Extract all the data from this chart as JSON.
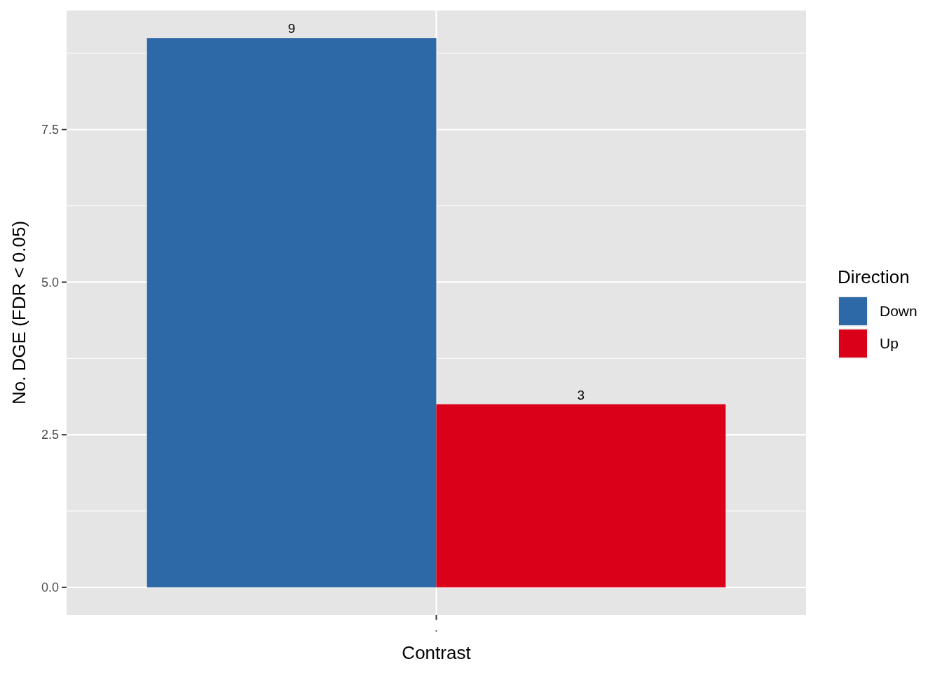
{
  "chart_data": {
    "type": "bar",
    "xlabel": "Contrast",
    "ylabel": "No. DGE (FDR < 0.05)",
    "legend_title": "Direction",
    "categories": [
      "."
    ],
    "series": [
      {
        "name": "Down",
        "color": "#2c69a6",
        "values": [
          9
        ]
      },
      {
        "name": "Up",
        "color": "#da0019",
        "values": [
          3
        ]
      }
    ],
    "ylim": [
      -0.45,
      9.45
    ],
    "yticks": [
      {
        "value": 0,
        "label": "0.0"
      },
      {
        "value": 2.5,
        "label": "2.5"
      },
      {
        "value": 5,
        "label": "5.0"
      },
      {
        "value": 7.5,
        "label": "7.5"
      }
    ],
    "grid": true,
    "legend": "right",
    "data_labels": true
  }
}
